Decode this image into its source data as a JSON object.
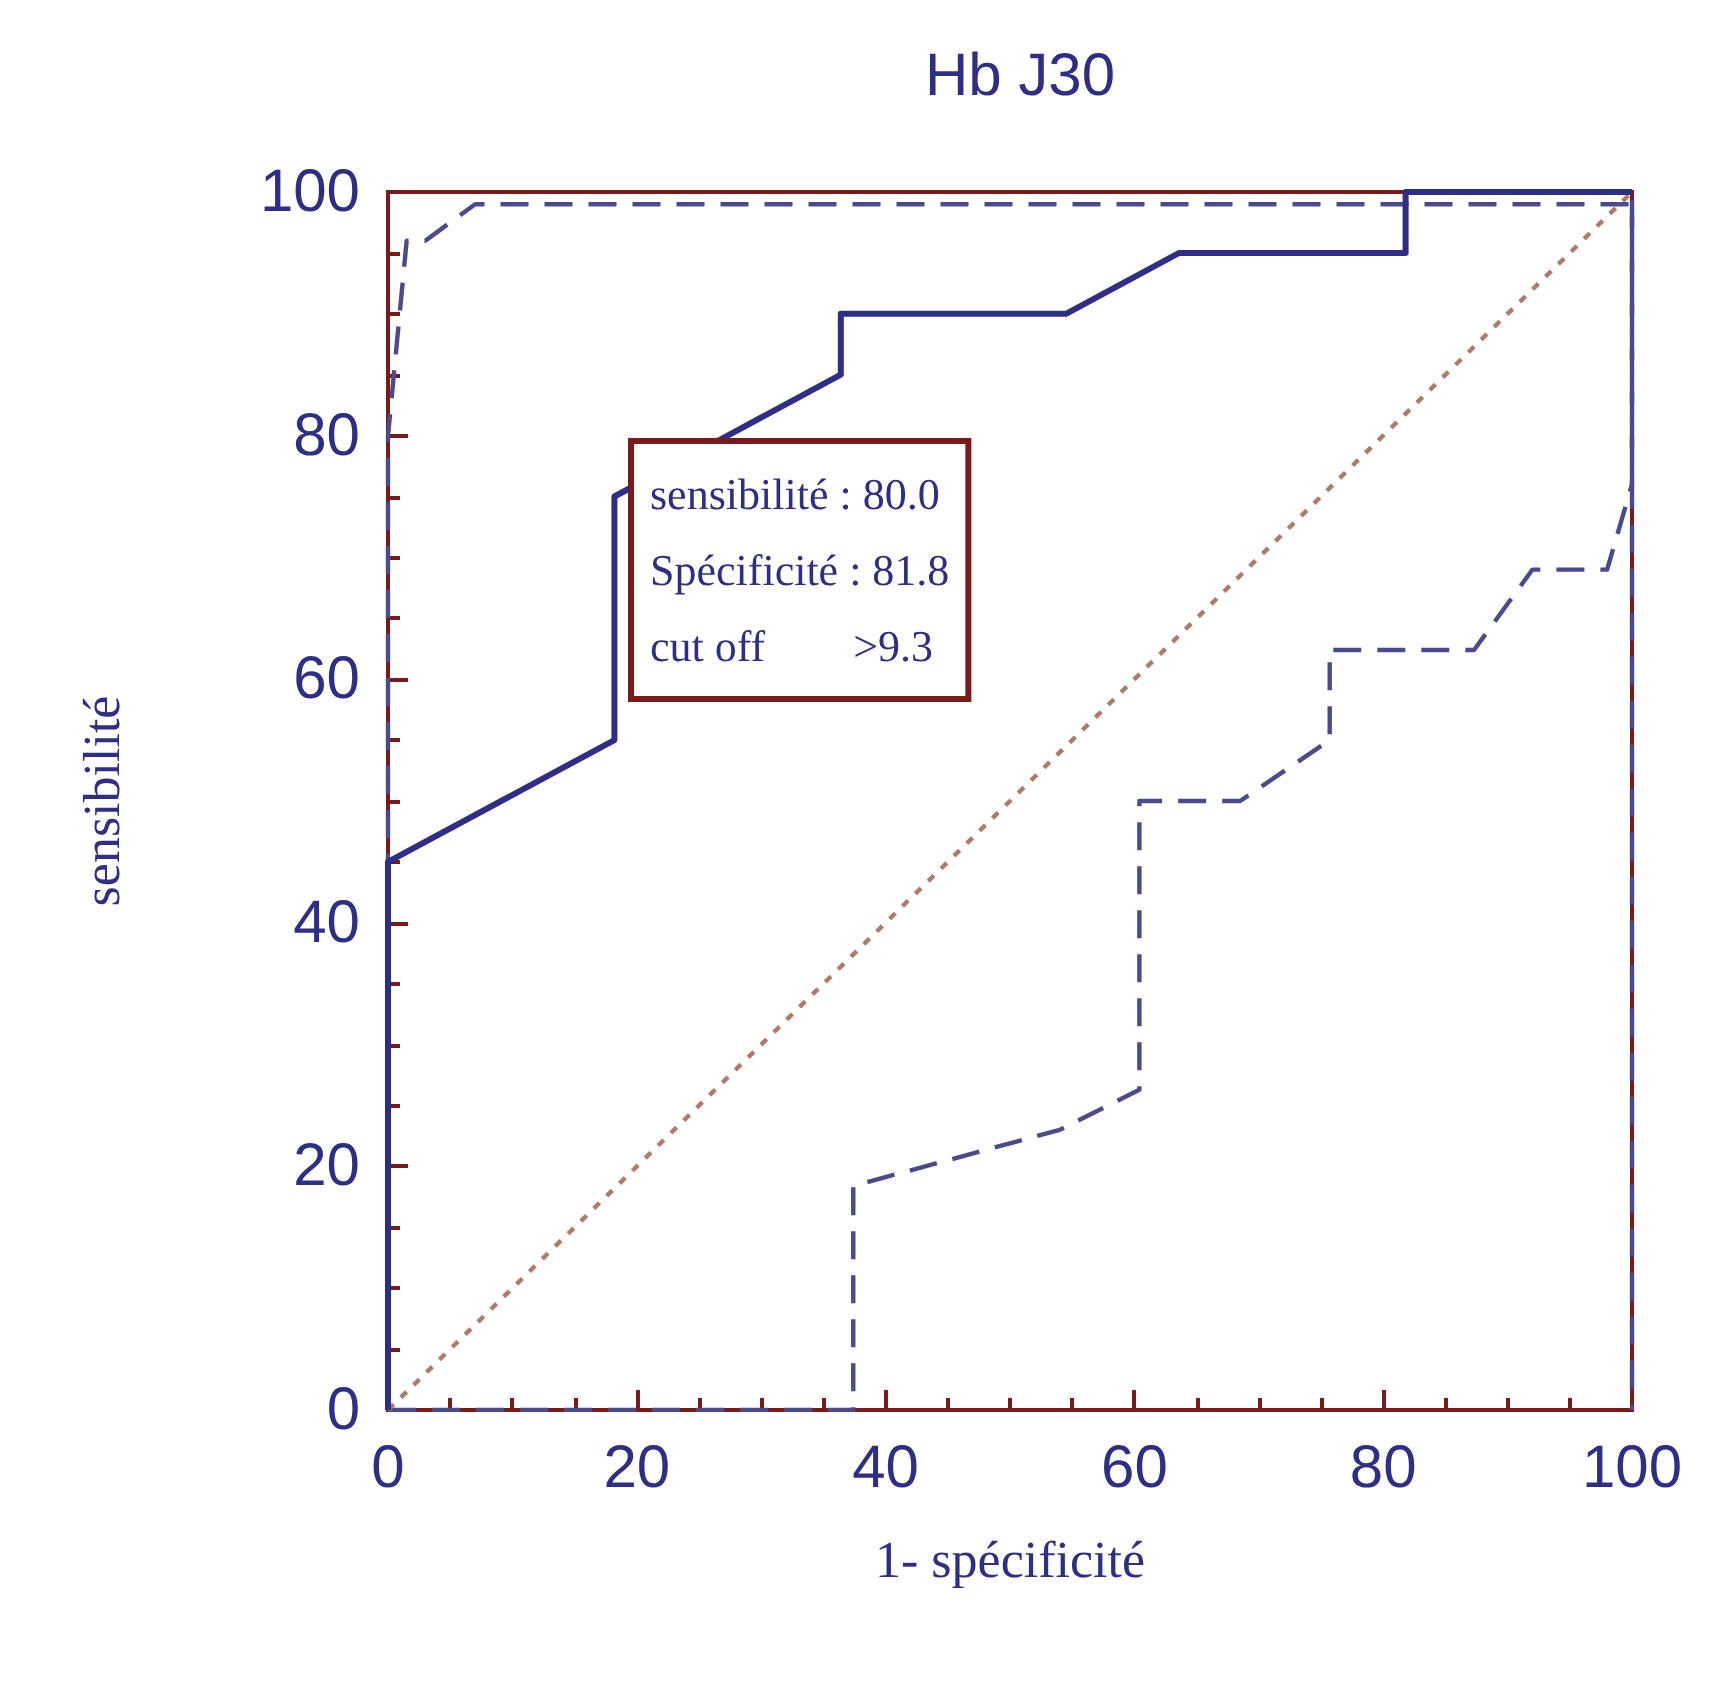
{
  "chart_data": {
    "type": "line",
    "title": "Hb J30",
    "xlabel": "1- spécificité",
    "ylabel": "sensibilité",
    "annotations": [
      "sensibilité : 80.0",
      "Spécificité : 81.8",
      "cut off        >9.3"
    ],
    "xlim": [
      0,
      100
    ],
    "ylim": [
      0,
      100
    ],
    "xticks": [
      0,
      20,
      40,
      60,
      80,
      100
    ],
    "yticks": [
      0,
      20,
      40,
      60,
      80,
      100
    ],
    "grid": false,
    "marker": "none",
    "series": [
      {
        "color": "#2e2e86",
        "line_style": "solid",
        "x": [
          0,
          0,
          18.2,
          18.2,
          27.3,
          36.4,
          36.4,
          54.5,
          63.6,
          81.8,
          81.8,
          100
        ],
        "values": [
          0,
          45,
          55,
          75,
          80,
          85,
          90,
          90,
          95,
          95,
          100,
          100
        ]
      },
      {
        "color": "#4a4a8c",
        "line_style": "dashed",
        "x": [
          0,
          0,
          1.5,
          3,
          7,
          100,
          100
        ],
        "values": [
          0,
          80,
          96,
          96,
          99,
          99,
          0
        ]
      },
      {
        "color": "#4a4a8c",
        "line_style": "dashed",
        "x": [
          0,
          37.4,
          37.4,
          54,
          60.4,
          60.4,
          68.5,
          75.7,
          75.7,
          87.3,
          92,
          98,
          100,
          100
        ],
        "values": [
          0,
          0,
          18.4,
          23,
          26.3,
          50,
          50,
          55,
          62.4,
          62.4,
          69,
          69,
          76,
          100
        ]
      },
      {
        "color": "#b07a6a",
        "line_style": "dotted",
        "x": [
          0,
          100
        ],
        "values": [
          0,
          100
        ]
      }
    ]
  }
}
